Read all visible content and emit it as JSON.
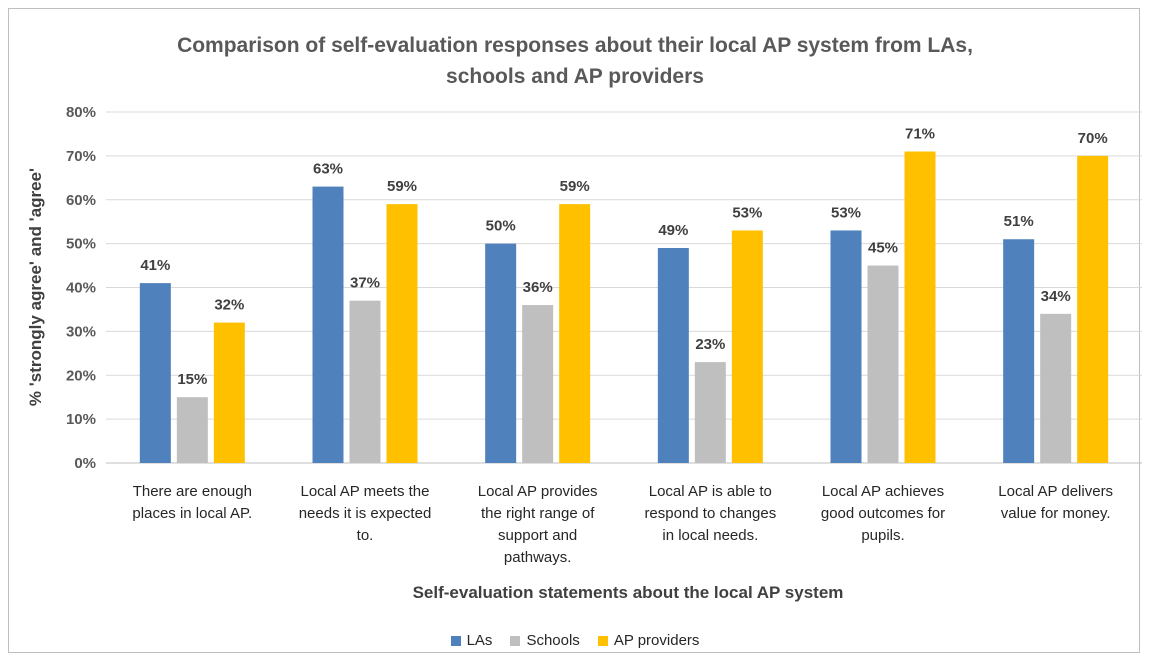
{
  "chart_data": {
    "type": "bar",
    "title_lines": [
      "Comparison of self-evaluation responses about their local AP system from LAs,",
      "schools and AP providers"
    ],
    "xlabel": "Self-evaluation statements about the local AP system",
    "ylabel": "% 'strongly agree' and 'agree'",
    "ylim": [
      0,
      80
    ],
    "yticks": [
      "0%",
      "10%",
      "20%",
      "30%",
      "40%",
      "50%",
      "60%",
      "70%",
      "80%"
    ],
    "grid": true,
    "legend_position": "bottom",
    "categories": [
      [
        "There are enough",
        "places in local AP."
      ],
      [
        "Local AP meets the",
        "needs it is expected",
        "to."
      ],
      [
        "Local AP provides",
        "the right range of",
        "support and",
        "pathways."
      ],
      [
        "Local AP is able to",
        "respond to changes",
        "in local needs."
      ],
      [
        "Local AP achieves",
        "good outcomes for",
        "pupils."
      ],
      [
        "Local AP delivers",
        "value for money."
      ]
    ],
    "series": [
      {
        "name": "LAs",
        "color": "#4f81bd",
        "values": [
          41,
          63,
          50,
          49,
          53,
          51
        ],
        "labels": [
          "41%",
          "63%",
          "50%",
          "49%",
          "53%",
          "51%"
        ]
      },
      {
        "name": "Schools",
        "color": "#bfbfbf",
        "values": [
          15,
          37,
          36,
          23,
          45,
          34
        ],
        "labels": [
          "15%",
          "37%",
          "36%",
          "23%",
          "45%",
          "34%"
        ]
      },
      {
        "name": "AP providers",
        "color": "#ffc000",
        "values": [
          32,
          59,
          59,
          53,
          71,
          70
        ],
        "labels": [
          "32%",
          "59%",
          "59%",
          "53%",
          "71%",
          "70%"
        ]
      }
    ]
  }
}
